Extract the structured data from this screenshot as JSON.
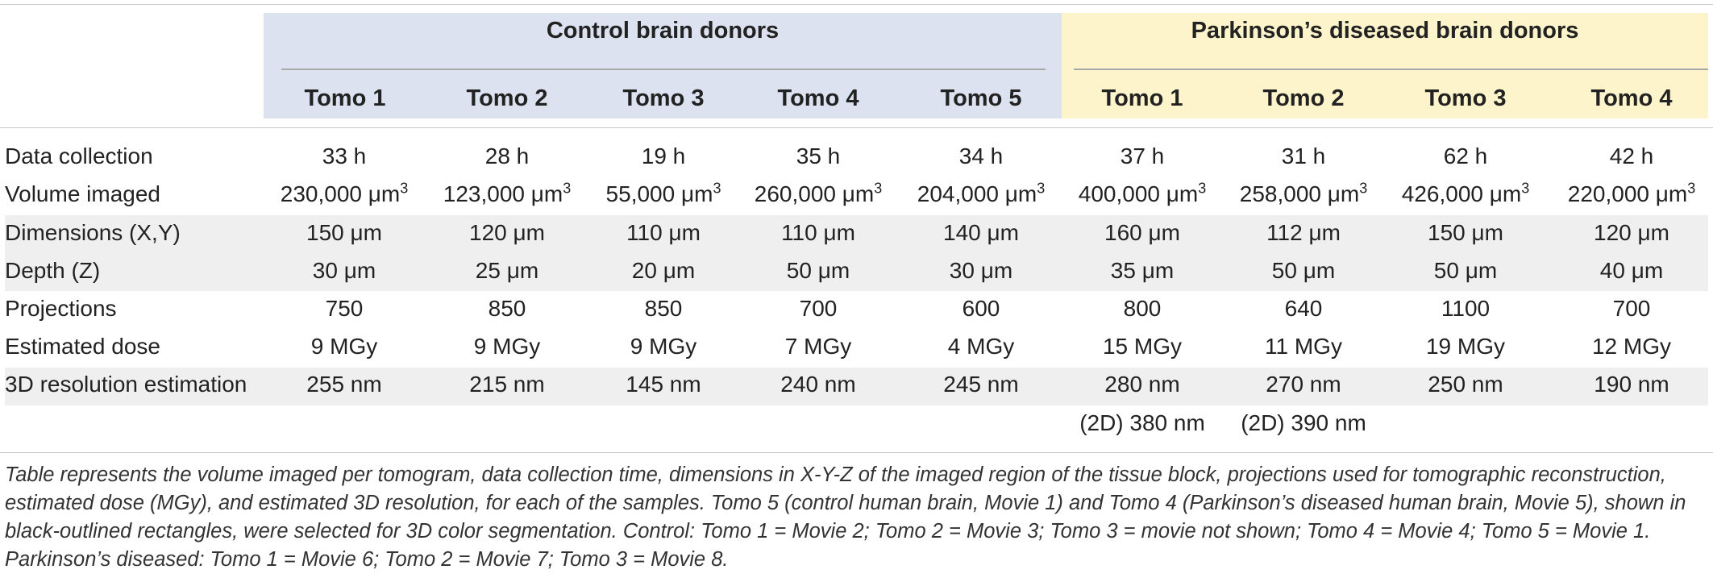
{
  "groups": {
    "control": "Control brain donors",
    "parkinsons": "Parkinson’s diseased brain donors"
  },
  "columns": [
    "Tomo 1",
    "Tomo 2",
    "Tomo 3",
    "Tomo 4",
    "Tomo 5",
    "Tomo 1",
    "Tomo 2",
    "Tomo 3",
    "Tomo 4"
  ],
  "rows": [
    {
      "label": "Data collection",
      "cells": [
        "33 h",
        "28 h",
        "19 h",
        "35 h",
        "34 h",
        "37 h",
        "31 h",
        "62 h",
        "42 h"
      ]
    },
    {
      "label": "Volume imaged",
      "cells": [
        "230,000 μm",
        "123,000 μm",
        "55,000 μm",
        "260,000 μm",
        "204,000 μm",
        "400,000 μm",
        "258,000 μm",
        "426,000 μm",
        "220,000 μm"
      ],
      "sup": "3"
    },
    {
      "label": "Dimensions (X,Y)",
      "cells": [
        "150 μm",
        "120 μm",
        "110 μm",
        "110 μm",
        "140 μm",
        "160 μm",
        "112 μm",
        "150 μm",
        "120 μm"
      ]
    },
    {
      "label": "Depth (Z)",
      "cells": [
        "30 μm",
        "25 μm",
        "20 μm",
        "50 μm",
        "30 μm",
        "35 μm",
        "50 μm",
        "50 μm",
        "40 μm"
      ]
    },
    {
      "label": "Projections",
      "cells": [
        "750",
        "850",
        "850",
        "700",
        "600",
        "800",
        "640",
        "1100",
        "700"
      ]
    },
    {
      "label": "Estimated dose",
      "cells": [
        "9 MGy",
        "9 MGy",
        "9 MGy",
        "7 MGy",
        "4 MGy",
        "15 MGy",
        "11 MGy",
        "19 MGy",
        "12 MGy"
      ]
    },
    {
      "label": "3D resolution estimation",
      "cells": [
        "255 nm",
        "215 nm",
        "145 nm",
        "240 nm",
        "245 nm",
        "280 nm",
        "270 nm",
        "250 nm",
        "190 nm"
      ]
    }
  ],
  "extra_row": {
    "cells": [
      "",
      "",
      "",
      "",
      "",
      "(2D) 380 nm",
      "(2D) 390 nm",
      "",
      ""
    ]
  },
  "caption": "Table represents the volume imaged per tomogram, data collection time, dimensions in X-Y-Z of the imaged region of the tissue block, projections used for tomographic reconstruction, estimated dose (MGy), and estimated 3D resolution, for each of the samples. Tomo 5 (control human brain, Movie 1) and Tomo 4 (Parkinson’s diseased human brain, Movie 5), shown in black-outlined rectangles, were selected for 3D color segmentation. Control: Tomo 1 = Movie 2; Tomo 2 = Movie 3; Tomo 3 = movie not shown; Tomo 4 = Movie 4; Tomo 5 = Movie 1. Parkinson’s diseased: Tomo 1 = Movie 6; Tomo 2 = Movie 7; Tomo 3 = Movie 8.",
  "colors": {
    "control_band": "#dde2f0",
    "pd_band": "#fdf4cc",
    "stripe": "#efefef"
  }
}
